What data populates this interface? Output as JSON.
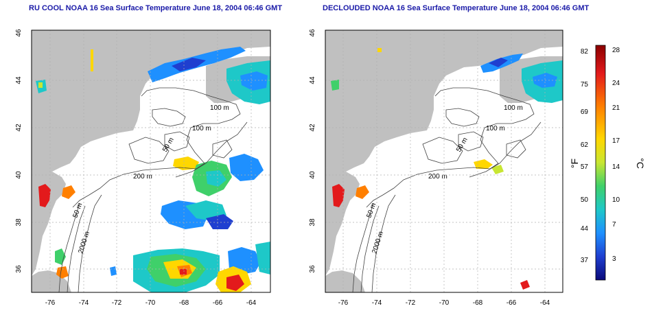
{
  "left_panel": {
    "title": "RU COOL NOAA 16 Sea Surface Temperature June 18, 2004 06:46 GMT",
    "contour_labels": [
      "100 m",
      "100 m",
      "50 m",
      "200 m",
      "50 m",
      "2000 m"
    ]
  },
  "right_panel": {
    "title": "DECLOUDED NOAA 16 Sea Surface Temperature June 18, 2004 06:46 GMT",
    "contour_labels": [
      "100 m",
      "100 m",
      "50 m",
      "200 m",
      "50 m",
      "2000 m"
    ]
  },
  "axes": {
    "lat_ticks": [
      "46",
      "44",
      "42",
      "40",
      "38",
      "36"
    ],
    "lon_ticks": [
      "-76",
      "-74",
      "-72",
      "-70",
      "-68",
      "-66",
      "-64"
    ]
  },
  "colorbar": {
    "f_ticks": [
      "82",
      "75",
      "69",
      "62",
      "57",
      "50",
      "44",
      "37"
    ],
    "c_ticks": [
      "28",
      "24",
      "21",
      "17",
      "14",
      "10",
      "7",
      "3"
    ],
    "unit_f": "°F",
    "unit_c": "°C",
    "colors": [
      "#8b0000",
      "#e31a1c",
      "#ff7f00",
      "#ffd700",
      "#c8e632",
      "#3fd06a",
      "#1ec8c8",
      "#1e90ff",
      "#1f3fd0",
      "#0a0a7a"
    ]
  },
  "colors": {
    "land": "#c0c0c0",
    "title": "#1a1aa8",
    "grid": "#b0b0b0"
  }
}
